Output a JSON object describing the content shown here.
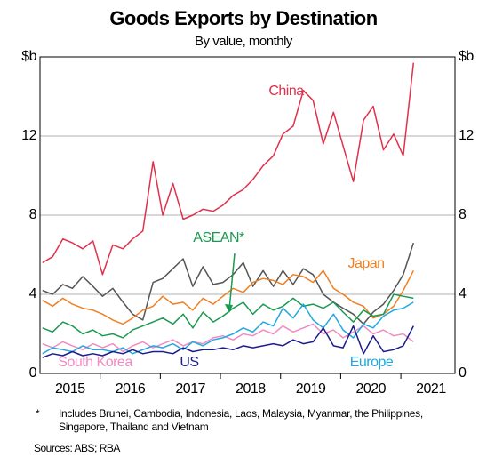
{
  "chart_data": {
    "type": "line",
    "title": "Goods Exports by Destination",
    "subtitle": "By value, monthly",
    "footnote_marker": "*",
    "footnote": "Includes Brunei, Cambodia, Indonesia, Laos, Malaysia, Myanmar, the Philippines, Singapore, Thailand and Vietnam",
    "sources": "Sources: ABS; RBA",
    "xlim": [
      2015.0,
      2021.9
    ],
    "xticks": [
      {
        "value": 2015.5,
        "label": "2015"
      },
      {
        "value": 2016.5,
        "label": "2016"
      },
      {
        "value": 2017.5,
        "label": "2017"
      },
      {
        "value": 2018.5,
        "label": "2018"
      },
      {
        "value": 2019.5,
        "label": "2019"
      },
      {
        "value": 2020.5,
        "label": "2020"
      },
      {
        "value": 2021.5,
        "label": "2021"
      }
    ],
    "ylim": [
      0,
      16
    ],
    "yticks": [
      0,
      4,
      8,
      12,
      {
        "value": 16,
        "label": "$b"
      }
    ],
    "grid": true,
    "x": [
      2015.04,
      2015.21,
      2015.38,
      2015.54,
      2015.71,
      2015.88,
      2016.04,
      2016.21,
      2016.38,
      2016.54,
      2016.71,
      2016.88,
      2017.04,
      2017.21,
      2017.38,
      2017.54,
      2017.71,
      2017.88,
      2018.04,
      2018.21,
      2018.38,
      2018.54,
      2018.71,
      2018.88,
      2019.04,
      2019.21,
      2019.38,
      2019.54,
      2019.71,
      2019.88,
      2020.04,
      2020.21,
      2020.38,
      2020.54,
      2020.71,
      2020.88,
      2021.04,
      2021.21
    ],
    "series": [
      {
        "name": null,
        "color": "#555555",
        "values": [
          4.2,
          4.0,
          4.5,
          4.3,
          4.9,
          4.4,
          3.9,
          4.3,
          3.6,
          3.0,
          2.7,
          4.6,
          4.8,
          5.3,
          5.8,
          4.4,
          5.4,
          4.5,
          4.6,
          5.0,
          5.6,
          4.4,
          5.2,
          4.4,
          5.2,
          4.5,
          5.3,
          5.0,
          4.0,
          3.6,
          3.3,
          3.0,
          2.5,
          3.1,
          3.5,
          4.2,
          5.0,
          6.6
        ]
      },
      {
        "name": "Japan",
        "color": "#f07f22",
        "values": [
          3.7,
          3.4,
          3.8,
          3.5,
          3.3,
          3.2,
          3.0,
          2.7,
          2.5,
          2.8,
          3.2,
          3.4,
          3.9,
          3.5,
          3.6,
          3.2,
          3.8,
          3.5,
          3.9,
          4.3,
          4.1,
          4.6,
          4.8,
          4.7,
          4.5,
          5.0,
          4.9,
          4.6,
          5.2,
          4.3,
          4.0,
          3.6,
          3.4,
          2.8,
          3.0,
          3.4,
          4.2,
          5.2
        ]
      },
      {
        "name": "ASEAN*",
        "color": "#1a9a50",
        "values": [
          2.3,
          2.1,
          2.6,
          2.4,
          2.0,
          2.2,
          1.9,
          2.0,
          1.8,
          2.2,
          2.4,
          2.6,
          2.8,
          2.5,
          3.0,
          2.3,
          3.1,
          2.6,
          2.9,
          3.3,
          3.6,
          3.0,
          3.5,
          3.2,
          3.4,
          3.8,
          3.4,
          3.5,
          3.3,
          3.6,
          3.1,
          2.6,
          3.2,
          2.9,
          3.0,
          4.0,
          3.9,
          3.8
        ]
      },
      {
        "name": "South Korea",
        "color": "#f08bc0",
        "values": [
          1.5,
          1.3,
          1.6,
          1.4,
          1.2,
          1.5,
          1.3,
          1.5,
          1.1,
          1.4,
          1.6,
          1.3,
          1.5,
          1.7,
          1.4,
          1.6,
          1.5,
          1.8,
          1.9,
          1.7,
          2.0,
          1.9,
          2.2,
          2.0,
          2.4,
          2.1,
          2.3,
          2.5,
          2.0,
          2.2,
          1.8,
          2.1,
          2.4,
          2.0,
          2.2,
          1.9,
          2.0,
          1.6
        ]
      },
      {
        "name": "Europe",
        "color": "#20a8e0",
        "values": [
          1.0,
          1.3,
          1.2,
          1.1,
          1.4,
          1.2,
          1.2,
          1.1,
          1.3,
          1.0,
          1.2,
          1.4,
          1.3,
          1.5,
          1.2,
          1.6,
          1.4,
          1.7,
          1.8,
          2.0,
          2.3,
          2.1,
          2.6,
          2.4,
          3.3,
          2.8,
          3.5,
          2.7,
          2.3,
          3.0,
          2.2,
          1.8,
          2.5,
          2.3,
          2.9,
          3.2,
          3.3,
          3.6
        ]
      },
      {
        "name": "US",
        "color": "#1c1c8c",
        "values": [
          0.8,
          1.0,
          0.9,
          1.1,
          0.9,
          1.0,
          0.9,
          1.1,
          1.0,
          1.2,
          1.0,
          1.1,
          1.1,
          1.0,
          1.3,
          1.1,
          1.2,
          1.2,
          1.3,
          1.2,
          1.4,
          1.3,
          1.4,
          1.5,
          1.4,
          1.7,
          1.5,
          1.6,
          2.3,
          1.4,
          1.3,
          2.4,
          1.0,
          1.9,
          1.1,
          1.2,
          1.4,
          2.4
        ]
      },
      {
        "name": "China",
        "color": "#e0304a",
        "values": [
          5.6,
          5.9,
          6.8,
          6.6,
          6.3,
          6.7,
          5.0,
          6.5,
          6.3,
          6.8,
          7.2,
          10.7,
          8.0,
          9.6,
          7.8,
          8.0,
          8.3,
          8.2,
          8.5,
          9.0,
          9.3,
          9.8,
          10.5,
          11.0,
          12.1,
          12.5,
          14.3,
          13.8,
          11.6,
          13.2,
          11.5,
          9.7,
          12.8,
          13.5,
          11.3,
          12.1,
          11.0,
          15.7
        ]
      }
    ]
  }
}
